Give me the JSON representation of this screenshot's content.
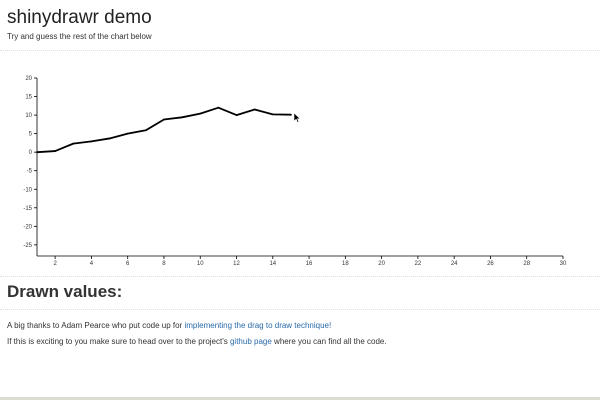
{
  "header": {
    "title": "shinydrawr demo",
    "subtitle": "Try and guess the rest of the chart below"
  },
  "chart_data": {
    "type": "line",
    "title": "",
    "xlabel": "",
    "ylabel": "",
    "xlim": [
      1,
      30
    ],
    "ylim": [
      -28,
      20
    ],
    "x_ticks": [
      2,
      4,
      6,
      8,
      10,
      12,
      14,
      16,
      18,
      20,
      22,
      24,
      26,
      28,
      30
    ],
    "y_ticks": [
      20,
      15,
      10,
      5,
      0,
      -5,
      -10,
      -15,
      -20,
      -25
    ],
    "grid": false,
    "series": [
      {
        "x": [
          1,
          2,
          3,
          4,
          5,
          6,
          7,
          8,
          9,
          10,
          11,
          12,
          13,
          14,
          15
        ],
        "y": [
          0,
          0.3,
          2.3,
          2.9,
          3.7,
          5.0,
          5.9,
          8.8,
          9.4,
          10.4,
          12.0,
          10.0,
          11.5,
          10.2,
          10.1
        ]
      }
    ],
    "line_color": "#000000"
  },
  "drawn_values": {
    "title": "Drawn values:",
    "thanks_prefix": "A big thanks to Adam Pearce who put code up for",
    "thanks_link": "implementing the drag to draw technique!",
    "excited_prefix": "If this is exciting to you make sure to head over to the project's",
    "excited_link": "github page",
    "excited_suffix": "where you can find all the code."
  }
}
